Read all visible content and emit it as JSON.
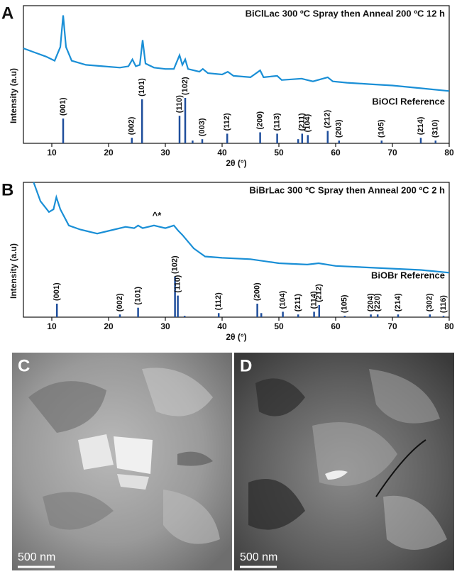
{
  "chart_data": [
    {
      "type": "line",
      "panel_label": "A",
      "annotation": "BiClLac 300 ºC Spray then Anneal 200 ºC 12 h",
      "x_label": "2θ (°)",
      "y_label": "Intensity (a.u)",
      "xlim": [
        5,
        80
      ],
      "xticks": [
        10,
        20,
        30,
        40,
        50,
        60,
        70,
        80
      ],
      "ylim": [
        0,
        100
      ],
      "series": [
        {
          "color": "#1a8fd6",
          "x": [
            5,
            7,
            9,
            10.5,
            11.5,
            12,
            12.5,
            13.5,
            16,
            19,
            22,
            23.5,
            24.2,
            24.8,
            25.5,
            26,
            26.5,
            28,
            30,
            31.5,
            32.5,
            33,
            33.5,
            34,
            36,
            36.6,
            37.5,
            40,
            41,
            42,
            45,
            46.7,
            47.3,
            49.7,
            50.5,
            54,
            55,
            56,
            58.6,
            59.5,
            62,
            66,
            70,
            75,
            80
          ],
          "values": [
            69,
            66,
            63,
            60,
            70,
            93,
            70,
            60,
            57,
            56,
            55,
            56,
            61,
            56,
            57,
            75,
            58,
            55,
            54,
            54,
            64,
            57,
            61,
            54,
            52,
            54,
            51,
            50,
            52,
            49,
            48,
            53,
            48,
            49,
            46,
            47,
            46,
            45,
            48,
            45,
            44,
            43,
            42,
            40,
            38
          ]
        }
      ],
      "reference": {
        "name": "BiOCl Reference",
        "color": "#1f4e9c",
        "x": [
          12.0,
          24.1,
          25.9,
          32.5,
          33.5,
          34.8,
          36.5,
          40.9,
          46.7,
          49.7,
          53.4,
          54.1,
          55.1,
          58.6,
          60.6,
          68.1,
          75.0,
          77.6
        ],
        "values": [
          18,
          4,
          32,
          20,
          33,
          2,
          3,
          7,
          8,
          7,
          3,
          7,
          6,
          9,
          2,
          2,
          4,
          2
        ],
        "labels": [
          "(001)",
          "(002)",
          "(101)",
          "(110)",
          "(102)",
          null,
          "(003)",
          "(112)",
          "(200)",
          "(113)",
          null,
          "(211)",
          "(104)",
          "(212)",
          "(203)",
          "(105)",
          "(214)",
          "(310)"
        ]
      }
    },
    {
      "type": "line",
      "panel_label": "B",
      "annotation": "BiBrLac 300 ºC Spray then Anneal 200 ºC 2 h",
      "x_label": "2θ (°)",
      "y_label": "Intensity (a.u)",
      "xlim": [
        5,
        80
      ],
      "xticks": [
        10,
        20,
        30,
        40,
        50,
        60,
        70,
        80
      ],
      "ylim": [
        0,
        100
      ],
      "marker_note": {
        "text": "^*",
        "x": 28.5,
        "y": 75
      },
      "series": [
        {
          "color": "#1a8fd6",
          "x": [
            6.8,
            8,
            9.5,
            10.3,
            10.8,
            11.5,
            13,
            15,
            18,
            21,
            23,
            24.5,
            25.2,
            26,
            28,
            30,
            31.5,
            32.3,
            33,
            35,
            37,
            40,
            45,
            50,
            55,
            57,
            60,
            70,
            75,
            80
          ],
          "values": [
            100,
            86,
            78,
            80,
            89,
            80,
            68,
            65,
            62,
            65,
            67,
            66,
            68,
            66,
            68,
            66,
            68,
            64,
            61,
            51,
            45,
            44,
            43,
            40,
            39,
            40,
            38,
            36,
            35,
            33
          ]
        }
      ],
      "reference": {
        "name": "BiOBr Reference",
        "color": "#1f4e9c",
        "x": [
          10.9,
          22.0,
          25.2,
          31.7,
          32.2,
          33.4,
          39.4,
          46.2,
          46.9,
          50.7,
          53.4,
          56.2,
          57.1,
          61.6,
          66.2,
          67.4,
          71.0,
          76.6,
          79.0
        ],
        "values": [
          10,
          2,
          7,
          30,
          16,
          1,
          3,
          10,
          3,
          4,
          2,
          4,
          9,
          1,
          2,
          2,
          2,
          2,
          1
        ],
        "labels": [
          "(001)",
          "(002)",
          "(101)",
          "(102)",
          "(110)",
          null,
          "(112)",
          "(200)",
          null,
          "(104)",
          "(211)",
          "(114)",
          "(212)",
          "(105)",
          "(204)",
          "(220)",
          "(214)",
          "(302)",
          "(116)"
        ]
      }
    }
  ],
  "images": [
    {
      "label": "C",
      "scale_bar": "500 nm"
    },
    {
      "label": "D",
      "scale_bar": "500 nm"
    }
  ]
}
